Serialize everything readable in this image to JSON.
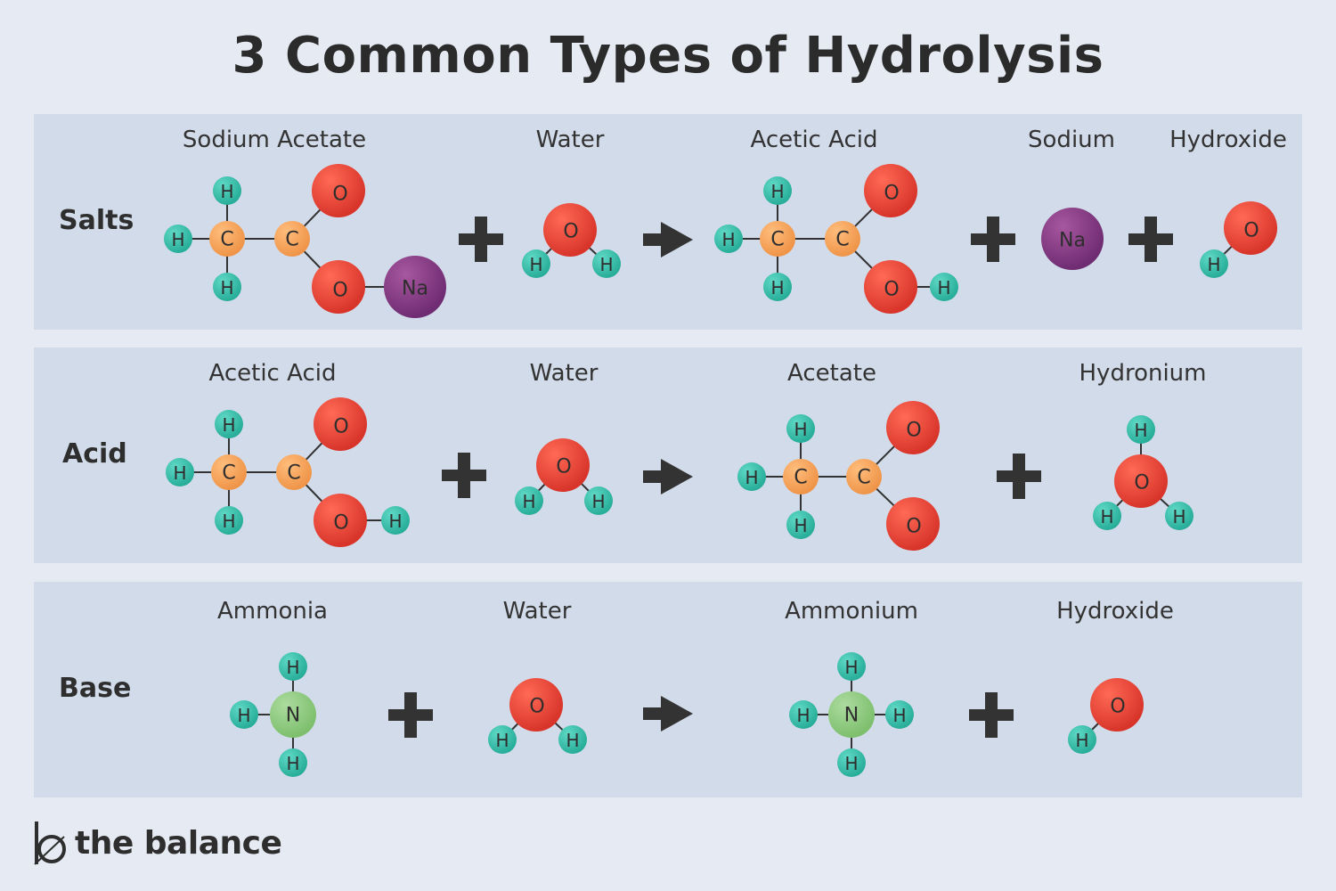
{
  "title": "3 Common Types of Hydrolysis",
  "colors": {
    "background": "#e6ebf3",
    "panel": "#d2dbe9",
    "hydrogen": "#36c0ad",
    "carbon": "#f6a25b",
    "oxygen": "#ef4a3c",
    "sodium": "#8d3f8c",
    "nitrogen": "#93cd85",
    "operator": "#333333"
  },
  "rows": [
    {
      "id": "salts",
      "label": "Salts",
      "compounds": [
        "Sodium Acetate",
        "Water",
        "Acetic Acid",
        "Sodium",
        "Hydroxide"
      ],
      "operators": [
        "+",
        "→",
        "+",
        "+"
      ]
    },
    {
      "id": "acid",
      "label": "Acid",
      "compounds": [
        "Acetic Acid",
        "Water",
        "Acetate",
        "Hydronium"
      ],
      "operators": [
        "+",
        "→",
        "+"
      ]
    },
    {
      "id": "base",
      "label": "Base",
      "compounds": [
        "Ammonia",
        "Water",
        "Ammonium",
        "Hydroxide"
      ],
      "operators": [
        "+",
        "→",
        "+"
      ]
    }
  ],
  "atoms": {
    "H": "H",
    "C": "C",
    "O": "O",
    "N": "N",
    "Na": "Na"
  },
  "logo": {
    "text": "the balance"
  }
}
